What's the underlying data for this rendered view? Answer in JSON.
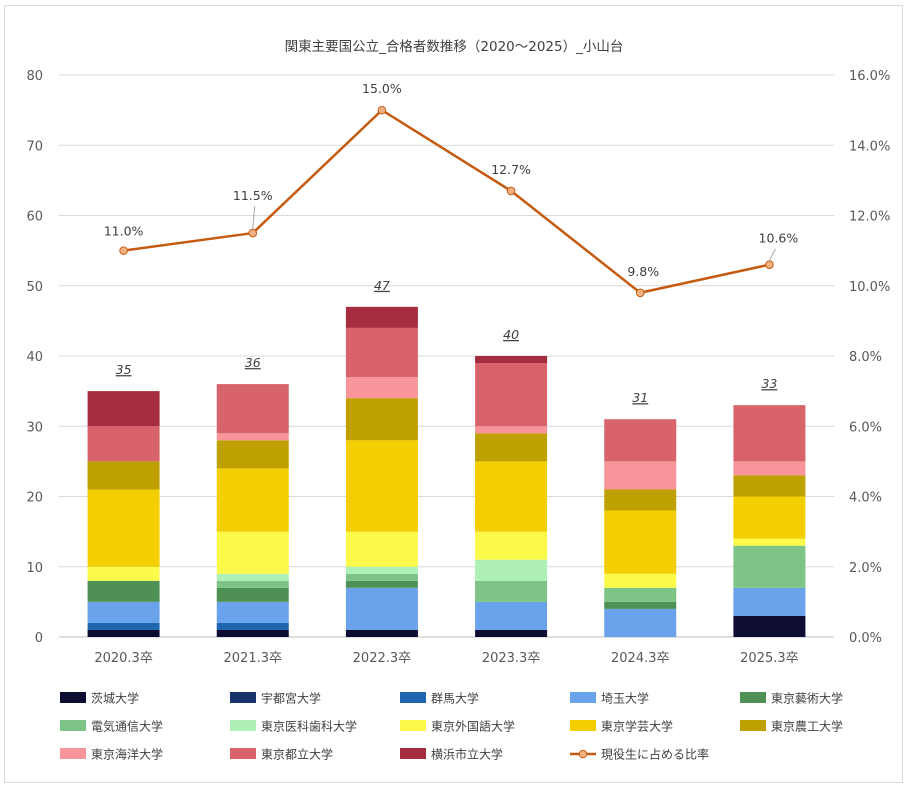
{
  "chart_data": {
    "type": "bar",
    "stacked": true,
    "title": "関東主要国公立_合格者数推移（2020～2025）_小山台",
    "categories": [
      "2020.3卒",
      "2021.3卒",
      "2022.3卒",
      "2023.3卒",
      "2024.3卒",
      "2025.3卒"
    ],
    "ylim": [
      0,
      80
    ],
    "yticks": [
      "0",
      "10",
      "20",
      "30",
      "40",
      "50",
      "60",
      "70",
      "80"
    ],
    "y2lim": [
      0,
      16
    ],
    "y2ticks": [
      "0.0%",
      "2.0%",
      "4.0%",
      "6.0%",
      "8.0%",
      "10.0%",
      "12.0%",
      "14.0%",
      "16.0%"
    ],
    "grid": true,
    "legend_position": "bottom",
    "series": [
      {
        "name": "茨城大学",
        "color": "#0d0d33",
        "values": [
          1,
          1,
          1,
          1,
          0,
          3
        ]
      },
      {
        "name": "宇都宮大学",
        "color": "#17336b",
        "values": [
          0,
          0,
          0,
          0,
          0,
          0
        ]
      },
      {
        "name": "群馬大学",
        "color": "#1f66b0",
        "values": [
          1,
          1,
          0,
          0,
          0,
          0
        ]
      },
      {
        "name": "埼玉大学",
        "color": "#6aa2ec",
        "values": [
          3,
          3,
          6,
          4,
          4,
          4
        ]
      },
      {
        "name": "東京藝術大学",
        "color": "#4f9155",
        "values": [
          3,
          2,
          1,
          0,
          1,
          0
        ]
      },
      {
        "name": "電気通信大学",
        "color": "#7dc486",
        "values": [
          0,
          1,
          1,
          3,
          2,
          6
        ]
      },
      {
        "name": "東京医科歯科大学",
        "color": "#aef0b8",
        "values": [
          0,
          1,
          1,
          3,
          0,
          0
        ]
      },
      {
        "name": "東京外国語大学",
        "color": "#fbf94a",
        "values": [
          2,
          6,
          5,
          4,
          2,
          1
        ]
      },
      {
        "name": "東京学芸大学",
        "color": "#f3ce00",
        "values": [
          11,
          9,
          13,
          10,
          9,
          6
        ]
      },
      {
        "name": "東京農工大学",
        "color": "#bea000",
        "values": [
          4,
          4,
          6,
          4,
          3,
          3
        ]
      },
      {
        "name": "東京海洋大学",
        "color": "#f7959a",
        "values": [
          0,
          1,
          3,
          1,
          4,
          2
        ]
      },
      {
        "name": "東京都立大学",
        "color": "#d9636b",
        "values": [
          5,
          7,
          7,
          9,
          6,
          8
        ]
      },
      {
        "name": "横浜市立大学",
        "color": "#a62d3f",
        "values": [
          5,
          0,
          3,
          1,
          0,
          0
        ]
      }
    ],
    "totals": [
      "35",
      "36",
      "47",
      "40",
      "31",
      "33"
    ],
    "line": {
      "name": "現役生に占める比率",
      "color": "#c55a11",
      "marker_fill": "#f4b183",
      "values": [
        11.0,
        11.5,
        15.0,
        12.7,
        9.8,
        10.6
      ],
      "labels": [
        "11.0%",
        "11.5%",
        "15.0%",
        "12.7%",
        "9.8%",
        "10.6%"
      ]
    }
  }
}
